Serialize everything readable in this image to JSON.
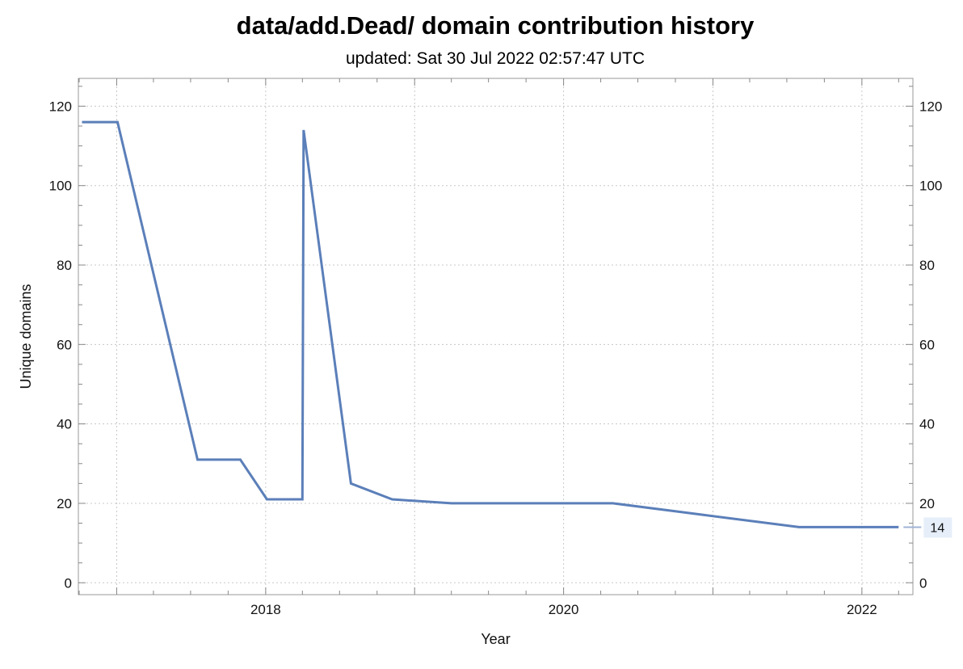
{
  "chart_data": {
    "type": "line",
    "title": "data/add.Dead/ domain contribution history",
    "subtitle": "updated: Sat 30 Jul 2022 02:57:47 UTC",
    "xlabel": "Year",
    "ylabel": "Unique domains",
    "xlim": [
      "2016-09-29",
      "2022-05-06"
    ],
    "ylim": [
      -3,
      127
    ],
    "x_ticks": [
      {
        "value": "2018-01-01",
        "label": "2018"
      },
      {
        "value": "2020-01-01",
        "label": "2020"
      },
      {
        "value": "2022-01-01",
        "label": "2022"
      }
    ],
    "y_ticks": [
      0,
      20,
      40,
      60,
      80,
      100,
      120
    ],
    "y_tick_labels": [
      "0",
      "20",
      "40",
      "60",
      "80",
      "100",
      "120"
    ],
    "grid": true,
    "line_color": "#5b7fb9",
    "series": [
      {
        "x": [
          "2016-10-08",
          "2017-01-03",
          "2017-07-18",
          "2017-10-31",
          "2018-01-04",
          "2018-04-01",
          "2018-04-04",
          "2018-07-29",
          "2018-11-07",
          "2019-04-01",
          "2020-05-01",
          "2021-07-31",
          "2022-04-01"
        ],
        "y": [
          116,
          116,
          31,
          31,
          21,
          21,
          114,
          25,
          21,
          20,
          20,
          14,
          14
        ]
      }
    ],
    "end_label": "14"
  }
}
